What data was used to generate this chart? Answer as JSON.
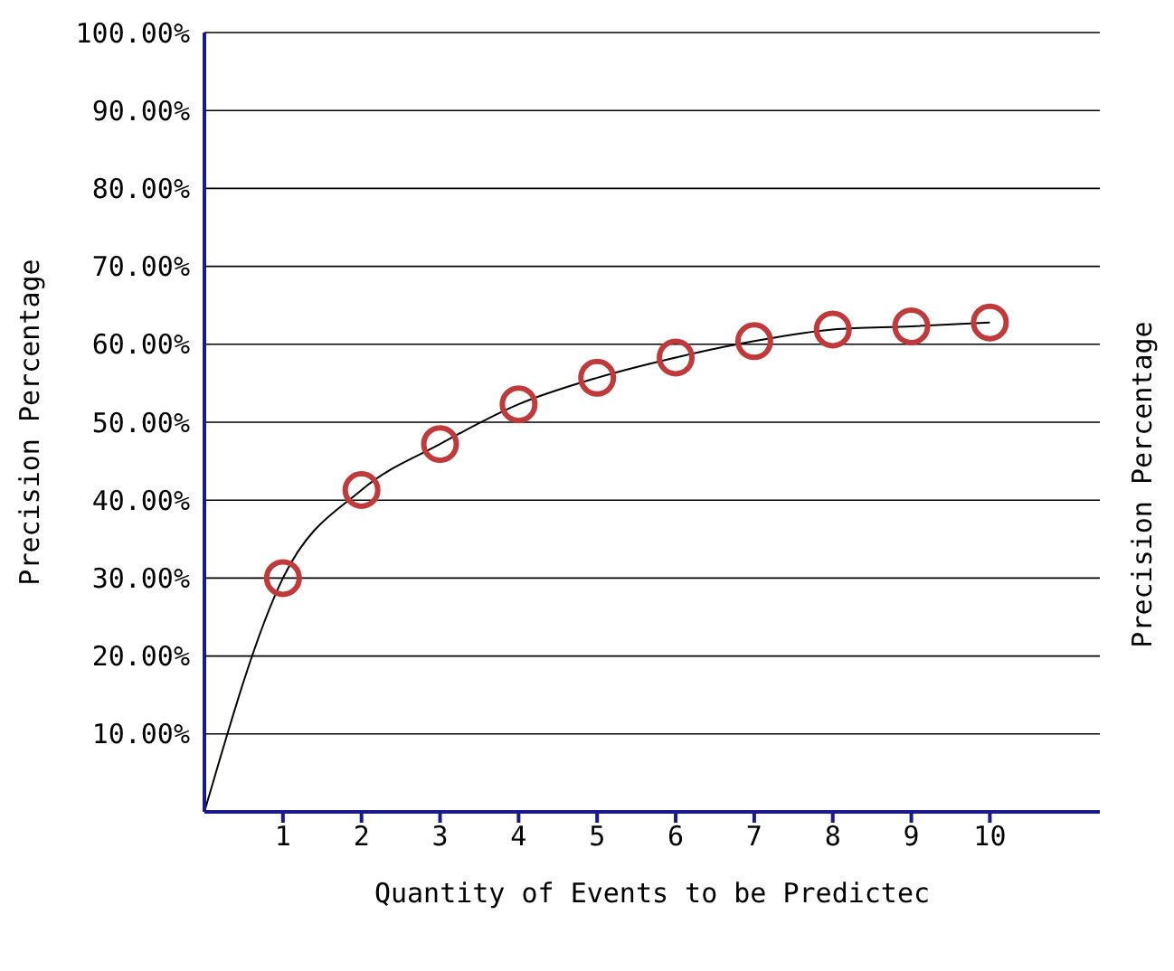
{
  "chart_data": {
    "type": "line",
    "xlabel": "Quantity of Events to be Predictec",
    "ylabel": "Precision Percentage",
    "y2label": "Precision Percentage",
    "xlim": [
      0,
      11.4
    ],
    "xticks": [
      1,
      2,
      3,
      4,
      5,
      6,
      7,
      8,
      9,
      10
    ],
    "ylim": [
      0,
      100
    ],
    "yticks": [
      {
        "value": 10,
        "label": "10.00%"
      },
      {
        "value": 20,
        "label": "20.00%"
      },
      {
        "value": 30,
        "label": "30.00%"
      },
      {
        "value": 40,
        "label": "40.00%"
      },
      {
        "value": 50,
        "label": "50.00%"
      },
      {
        "value": 60,
        "label": "60.00%"
      },
      {
        "value": 70,
        "label": "70.00%"
      },
      {
        "value": 80,
        "label": "80.00%"
      },
      {
        "value": 90,
        "label": "90.00%"
      },
      {
        "value": 100,
        "label": "100.00%"
      }
    ],
    "grid": "y",
    "series": [
      {
        "color": "#000000",
        "marker": "none",
        "x": [
          0,
          1,
          2,
          3,
          4,
          5,
          6,
          7,
          8,
          9,
          10
        ],
        "values": [
          0,
          30,
          41.3,
          47.2,
          52.3,
          55.7,
          58.3,
          60.4,
          61.9,
          62.3,
          62.8
        ]
      },
      {
        "type": "scatter",
        "color": "#c0393b",
        "marker": "circle",
        "x": [
          1,
          2,
          3,
          4,
          5,
          6,
          7,
          8,
          9,
          10
        ],
        "values": [
          30,
          41.3,
          47.2,
          52.3,
          55.7,
          58.3,
          60.4,
          61.9,
          62.3,
          62.8
        ]
      }
    ]
  }
}
